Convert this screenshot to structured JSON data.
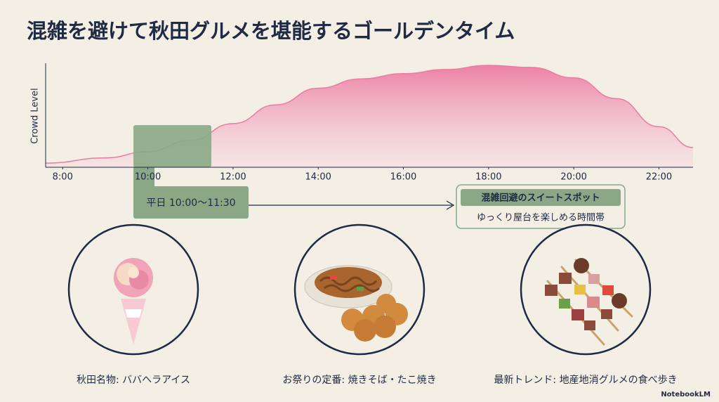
{
  "chart_data": {
    "type": "area",
    "title": "混雑を避けて秋田グルメを堪能するゴールデンタイム",
    "y_label": "Crowd Level",
    "x": [
      7.6,
      9,
      10,
      11,
      12,
      13,
      14,
      15,
      16,
      17,
      18,
      19,
      20,
      21,
      22,
      22.8
    ],
    "values": [
      4,
      9,
      15,
      26,
      42,
      60,
      76,
      85,
      90,
      94,
      98,
      96,
      86,
      66,
      39,
      19
    ],
    "color": "#ec7ba3",
    "xlim": [
      7.6,
      22.8
    ],
    "ylim": [
      0,
      100
    ],
    "xticks": [
      {
        "value": 8,
        "label": "8:00"
      },
      {
        "value": 10,
        "label": "10:00"
      },
      {
        "value": 12,
        "label": "12:00"
      },
      {
        "value": 14,
        "label": "14:00"
      },
      {
        "value": 16,
        "label": "16:00"
      },
      {
        "value": 18,
        "label": "18:00"
      },
      {
        "value": 20,
        "label": "20:00"
      },
      {
        "value": 22,
        "label": "22:00"
      }
    ]
  },
  "highlight": {
    "label": "平日 10:00〜11:30"
  },
  "callout": {
    "heading": "混雑回避のスイートスポット",
    "text": "ゆっくり屋台を楽しめる時間帯"
  },
  "foods": [
    {
      "caption": "秋田名物: ババヘラアイス"
    },
    {
      "caption": "お祭りの定番: 焼きそば・たこ焼き"
    },
    {
      "caption": "最新トレンド: 地産地消グルメの食べ歩き"
    }
  ],
  "footer": "NotebookLM"
}
